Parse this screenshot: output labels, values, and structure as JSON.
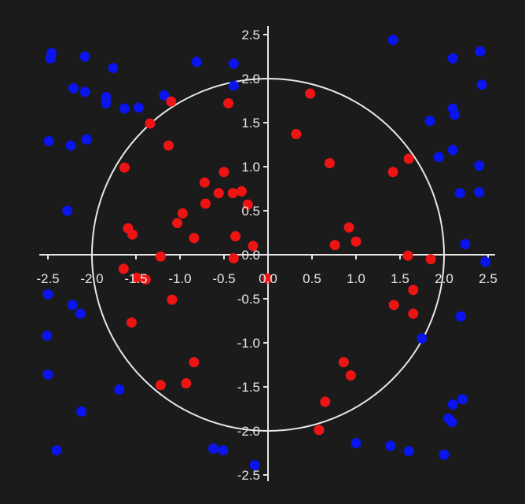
{
  "chart_data": {
    "type": "scatter",
    "title": "",
    "xlabel": "",
    "ylabel": "",
    "xlim": [
      -2.5,
      2.5
    ],
    "ylim": [
      -2.5,
      2.5
    ],
    "grid": false,
    "circle": {
      "radius": 2.0,
      "color": "#e6e6e6"
    },
    "axis_color": "#e6e6e6",
    "background": "#1b1b1c",
    "x_ticks": [
      "-2.5",
      "-2.0",
      "-1.5",
      "-1.0",
      "-0.5",
      "0.0",
      "0.5",
      "1.0",
      "1.5",
      "2.0",
      "2.5"
    ],
    "y_ticks": [
      "2.5",
      "2.0",
      "1.5",
      "1.0",
      "0.5",
      "0.0",
      "-0.5",
      "-1.0",
      "-1.5",
      "-2.0",
      "-2.5"
    ],
    "series": [
      {
        "color": "#0a14ee",
        "points": [
          [
            -2.46,
            2.29
          ],
          [
            -2.47,
            2.23
          ],
          [
            -2.08,
            2.25
          ],
          [
            -1.76,
            2.12
          ],
          [
            -0.81,
            2.19
          ],
          [
            -0.39,
            2.17
          ],
          [
            -2.21,
            1.89
          ],
          [
            -2.08,
            1.85
          ],
          [
            -1.84,
            1.79
          ],
          [
            -1.84,
            1.72
          ],
          [
            -1.63,
            1.66
          ],
          [
            -1.47,
            1.67
          ],
          [
            -1.18,
            1.81
          ],
          [
            -0.39,
            1.92
          ],
          [
            1.42,
            2.44
          ],
          [
            2.1,
            2.23
          ],
          [
            2.41,
            2.31
          ],
          [
            2.43,
            1.93
          ],
          [
            2.1,
            1.66
          ],
          [
            2.12,
            1.59
          ],
          [
            1.84,
            1.52
          ],
          [
            -2.49,
            1.29
          ],
          [
            -2.24,
            1.24
          ],
          [
            -2.06,
            1.31
          ],
          [
            1.94,
            1.11
          ],
          [
            2.1,
            1.19
          ],
          [
            2.4,
            1.01
          ],
          [
            -2.28,
            0.5
          ],
          [
            2.18,
            0.7
          ],
          [
            2.4,
            0.71
          ],
          [
            2.24,
            0.12
          ],
          [
            2.47,
            -0.08
          ],
          [
            -2.5,
            -0.45
          ],
          [
            -2.22,
            -0.57
          ],
          [
            -2.13,
            -0.67
          ],
          [
            2.19,
            -0.7
          ],
          [
            -2.51,
            -0.92
          ],
          [
            1.75,
            -0.95
          ],
          [
            -2.5,
            -1.36
          ],
          [
            -1.69,
            -1.53
          ],
          [
            2.21,
            -1.64
          ],
          [
            2.1,
            -1.7
          ],
          [
            -2.12,
            -1.78
          ],
          [
            2.05,
            -1.86
          ],
          [
            2.09,
            -1.9
          ],
          [
            -2.4,
            -2.22
          ],
          [
            -0.62,
            -2.2
          ],
          [
            -0.51,
            -2.22
          ],
          [
            1.0,
            -2.14
          ],
          [
            1.39,
            -2.17
          ],
          [
            1.6,
            -2.23
          ],
          [
            2.0,
            -2.27
          ],
          [
            -0.15,
            -2.39
          ]
        ]
      },
      {
        "color": "#ee1414",
        "points": [
          [
            -1.1,
            1.74
          ],
          [
            -0.45,
            1.72
          ],
          [
            0.48,
            1.83
          ],
          [
            -1.34,
            1.49
          ],
          [
            0.32,
            1.37
          ],
          [
            -1.13,
            1.24
          ],
          [
            0.7,
            1.04
          ],
          [
            1.6,
            1.09
          ],
          [
            -1.63,
            0.99
          ],
          [
            -0.5,
            0.94
          ],
          [
            1.42,
            0.94
          ],
          [
            -0.72,
            0.82
          ],
          [
            -0.56,
            0.7
          ],
          [
            -0.4,
            0.7
          ],
          [
            -0.3,
            0.72
          ],
          [
            -0.23,
            0.57
          ],
          [
            -0.71,
            0.58
          ],
          [
            -0.97,
            0.47
          ],
          [
            -1.03,
            0.36
          ],
          [
            -1.59,
            0.3
          ],
          [
            -1.54,
            0.23
          ],
          [
            -0.84,
            0.19
          ],
          [
            -0.37,
            0.21
          ],
          [
            -0.17,
            0.1
          ],
          [
            0.92,
            0.31
          ],
          [
            1.0,
            0.15
          ],
          [
            0.76,
            0.11
          ],
          [
            -1.22,
            -0.02
          ],
          [
            -0.39,
            -0.04
          ],
          [
            1.59,
            -0.01
          ],
          [
            1.85,
            -0.05
          ],
          [
            -1.64,
            -0.16
          ],
          [
            -1.49,
            -0.26
          ],
          [
            -1.39,
            -0.28
          ],
          [
            -0.01,
            -0.27
          ],
          [
            1.65,
            -0.4
          ],
          [
            -1.09,
            -0.51
          ],
          [
            1.43,
            -0.57
          ],
          [
            1.65,
            -0.67
          ],
          [
            -1.55,
            -0.77
          ],
          [
            -0.84,
            -1.22
          ],
          [
            0.86,
            -1.22
          ],
          [
            0.94,
            -1.37
          ],
          [
            -0.93,
            -1.46
          ],
          [
            -1.22,
            -1.48
          ],
          [
            0.65,
            -1.67
          ],
          [
            0.58,
            -1.99
          ]
        ]
      }
    ]
  }
}
